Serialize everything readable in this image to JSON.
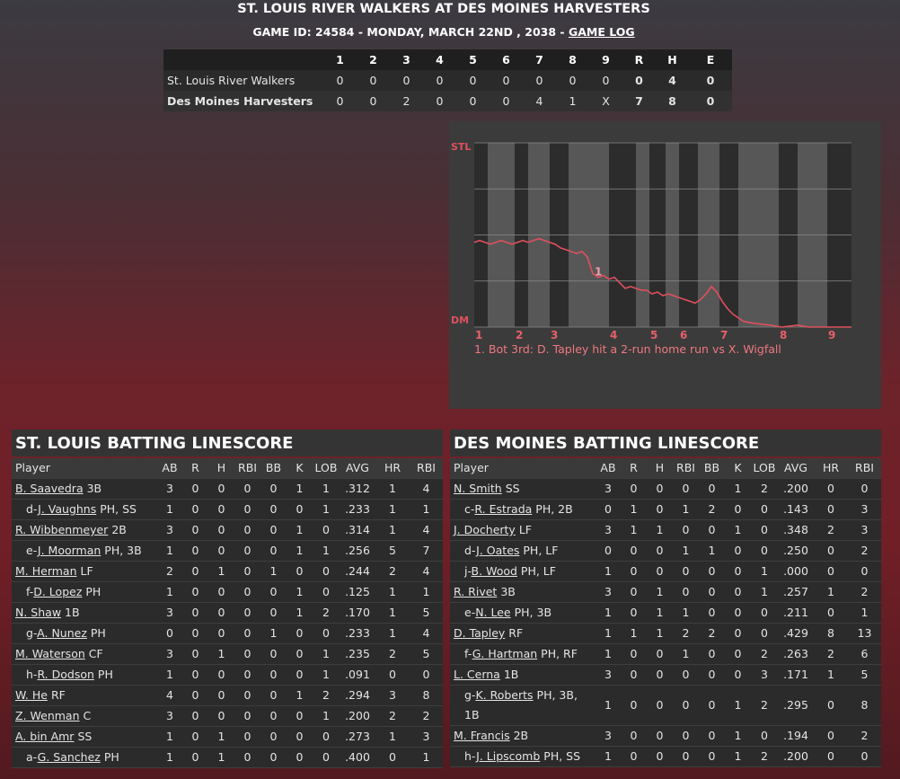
{
  "header": {
    "title": "ST. LOUIS RIVER WALKERS AT DES MOINES HARVESTERS",
    "subtitle": "GAME ID: 24584 - MONDAY, MARCH 22ND , 2038 - ",
    "link": "GAME LOG"
  },
  "linescore": {
    "columns": [
      "1",
      "2",
      "3",
      "4",
      "5",
      "6",
      "7",
      "8",
      "9",
      "R",
      "H",
      "E"
    ],
    "rows": [
      [
        "St. Louis River Walkers",
        "0",
        "0",
        "0",
        "0",
        "0",
        "0",
        "0",
        "0",
        "0",
        "0",
        "4",
        "0"
      ],
      [
        "Des Moines Harvesters",
        "0",
        "0",
        "2",
        "0",
        "0",
        "0",
        "4",
        "1",
        "X",
        "7",
        "8",
        "0"
      ]
    ]
  },
  "win_probability": {
    "type": "line",
    "top_label": "STL",
    "bottom_label": "DM",
    "color": "#e0505e",
    "xlim": [
      0,
      70
    ],
    "ylim": [
      0,
      100
    ],
    "yticks": [
      0,
      25,
      50,
      75,
      100
    ],
    "grid": true,
    "half_inning_bounds": [
      0,
      2.5,
      7.5,
      10,
      14,
      17.5,
      25,
      30,
      32.5,
      35.5,
      38,
      41.5,
      45.5,
      49,
      56.5,
      60,
      65.5,
      70
    ],
    "inning_labels": [
      1,
      2,
      3,
      4,
      5,
      6,
      7,
      8,
      9
    ],
    "x": [
      0,
      1,
      2,
      3,
      4,
      5,
      6,
      7,
      8,
      9,
      10,
      11,
      12,
      13,
      14,
      15,
      16,
      17,
      18,
      19,
      20,
      21,
      22,
      23,
      24,
      25,
      26,
      27,
      28,
      29,
      30,
      31,
      32,
      33,
      34,
      35,
      36,
      37,
      38,
      39,
      40,
      41,
      42,
      43,
      44,
      45,
      46,
      47,
      48,
      49,
      50,
      52,
      55,
      57,
      60,
      62,
      66,
      70
    ],
    "values": [
      46,
      47,
      46,
      45,
      46,
      47,
      46,
      45,
      46,
      47,
      46,
      47,
      48,
      47,
      46,
      45,
      43,
      42,
      41,
      40,
      41,
      38,
      29,
      27,
      28,
      26,
      27,
      24,
      21,
      22,
      21,
      20,
      20,
      18,
      19,
      17,
      18,
      17,
      16,
      15,
      14,
      13,
      15,
      18,
      22,
      19,
      14,
      10,
      7,
      5,
      3,
      2,
      1,
      0,
      1,
      0,
      0,
      0
    ],
    "annotations": [
      {
        "x": 23,
        "label": "1",
        "text": "1. Bot 3rd: D. Tapley hit a 2-run home run vs X. Wigfall"
      }
    ]
  },
  "batting": [
    {
      "title": "ST. LOUIS BATTING LINESCORE",
      "columns": [
        "Player",
        "AB",
        "R",
        "H",
        "RBI",
        "BB",
        "K",
        "LOB",
        "AVG",
        "HR",
        "RBI"
      ],
      "rows": [
        {
          "name": "B. Saavedra",
          "pos": "3B",
          "stats": [
            "3",
            "0",
            "0",
            "0",
            "0",
            "1",
            "1",
            ".312",
            "1",
            "4"
          ]
        },
        {
          "prefix": "d-",
          "name": "J. Vaughns",
          "pos": "PH, SS",
          "stats": [
            "1",
            "0",
            "0",
            "0",
            "0",
            "0",
            "1",
            ".233",
            "1",
            "1"
          ]
        },
        {
          "name": "R. Wibbenmeyer",
          "pos": "2B",
          "stats": [
            "3",
            "0",
            "0",
            "0",
            "0",
            "1",
            "0",
            ".314",
            "1",
            "4"
          ]
        },
        {
          "prefix": "e-",
          "name": "J. Moorman",
          "pos": "PH, 3B",
          "stats": [
            "1",
            "0",
            "0",
            "0",
            "0",
            "1",
            "1",
            ".256",
            "5",
            "7"
          ]
        },
        {
          "name": "M. Herman",
          "pos": "LF",
          "stats": [
            "2",
            "0",
            "1",
            "0",
            "1",
            "0",
            "0",
            ".244",
            "2",
            "4"
          ]
        },
        {
          "prefix": "f-",
          "name": "D. Lopez",
          "pos": "PH",
          "stats": [
            "1",
            "0",
            "0",
            "0",
            "0",
            "1",
            "0",
            ".125",
            "1",
            "1"
          ]
        },
        {
          "name": "N. Shaw",
          "pos": "1B",
          "stats": [
            "3",
            "0",
            "0",
            "0",
            "0",
            "1",
            "2",
            ".170",
            "1",
            "5"
          ]
        },
        {
          "prefix": "g-",
          "name": "A. Nunez",
          "pos": "PH",
          "stats": [
            "0",
            "0",
            "0",
            "0",
            "1",
            "0",
            "0",
            ".233",
            "1",
            "4"
          ]
        },
        {
          "name": "M. Waterson",
          "pos": "CF",
          "stats": [
            "3",
            "0",
            "1",
            "0",
            "0",
            "0",
            "1",
            ".235",
            "2",
            "5"
          ]
        },
        {
          "prefix": "h-",
          "name": "R. Dodson",
          "pos": "PH",
          "stats": [
            "1",
            "0",
            "0",
            "0",
            "0",
            "0",
            "1",
            ".091",
            "0",
            "0"
          ]
        },
        {
          "name": "W. He",
          "pos": "RF",
          "stats": [
            "4",
            "0",
            "0",
            "0",
            "0",
            "1",
            "2",
            ".294",
            "3",
            "8"
          ]
        },
        {
          "name": "Z. Wenman",
          "pos": "C",
          "stats": [
            "3",
            "0",
            "0",
            "0",
            "0",
            "0",
            "1",
            ".200",
            "2",
            "2"
          ]
        },
        {
          "name": "A. bin Amr",
          "pos": "SS",
          "stats": [
            "1",
            "0",
            "1",
            "0",
            "0",
            "0",
            "0",
            ".273",
            "1",
            "3"
          ]
        },
        {
          "prefix": "a-",
          "name": "G. Sanchez",
          "pos": "PH",
          "stats": [
            "1",
            "0",
            "1",
            "0",
            "0",
            "0",
            "0",
            ".400",
            "0",
            "1"
          ]
        }
      ]
    },
    {
      "title": "DES MOINES BATTING LINESCORE",
      "columns": [
        "Player",
        "AB",
        "R",
        "H",
        "RBI",
        "BB",
        "K",
        "LOB",
        "AVG",
        "HR",
        "RBI"
      ],
      "rows": [
        {
          "name": "N. Smith",
          "pos": "SS",
          "stats": [
            "3",
            "0",
            "0",
            "0",
            "0",
            "1",
            "2",
            ".200",
            "0",
            "0"
          ]
        },
        {
          "prefix": "c-",
          "name": "R. Estrada",
          "pos": "PH, 2B",
          "stats": [
            "0",
            "1",
            "0",
            "1",
            "2",
            "0",
            "0",
            ".143",
            "0",
            "3"
          ]
        },
        {
          "name": "J. Docherty",
          "pos": "LF",
          "stats": [
            "3",
            "1",
            "1",
            "0",
            "0",
            "1",
            "0",
            ".348",
            "2",
            "3"
          ]
        },
        {
          "prefix": "d-",
          "name": "J. Oates",
          "pos": "PH, LF",
          "stats": [
            "0",
            "0",
            "0",
            "1",
            "1",
            "0",
            "0",
            ".250",
            "0",
            "2"
          ]
        },
        {
          "prefix": "j-",
          "name": "B. Wood",
          "pos": "PH, LF",
          "stats": [
            "1",
            "0",
            "0",
            "0",
            "0",
            "0",
            "1",
            ".000",
            "0",
            "0"
          ]
        },
        {
          "name": "R. Rivet",
          "pos": "3B",
          "stats": [
            "3",
            "0",
            "1",
            "0",
            "0",
            "0",
            "1",
            ".257",
            "1",
            "2"
          ]
        },
        {
          "prefix": "e-",
          "name": "N. Lee",
          "pos": "PH, 3B",
          "stats": [
            "1",
            "0",
            "1",
            "1",
            "0",
            "0",
            "0",
            ".211",
            "0",
            "1"
          ]
        },
        {
          "name": "D. Tapley",
          "pos": "RF",
          "stats": [
            "1",
            "1",
            "1",
            "2",
            "2",
            "0",
            "0",
            ".429",
            "8",
            "13"
          ]
        },
        {
          "prefix": "f-",
          "name": "G. Hartman",
          "pos": "PH, RF",
          "stats": [
            "1",
            "0",
            "0",
            "1",
            "0",
            "0",
            "2",
            ".263",
            "2",
            "6"
          ]
        },
        {
          "name": "L. Cerna",
          "pos": "1B",
          "stats": [
            "3",
            "0",
            "0",
            "0",
            "0",
            "0",
            "3",
            ".171",
            "1",
            "5"
          ]
        },
        {
          "prefix": "g-",
          "name": "K. Roberts",
          "pos": "PH, 3B, 1B",
          "stats": [
            "1",
            "0",
            "0",
            "0",
            "0",
            "1",
            "2",
            ".295",
            "0",
            "8"
          ]
        },
        {
          "name": "M. Francis",
          "pos": "2B",
          "stats": [
            "3",
            "0",
            "0",
            "0",
            "0",
            "1",
            "0",
            ".194",
            "0",
            "2"
          ]
        },
        {
          "prefix": "h-",
          "name": "J. Lipscomb",
          "pos": "PH, SS",
          "stats": [
            "1",
            "0",
            "0",
            "0",
            "0",
            "1",
            "2",
            ".200",
            "0",
            "0"
          ]
        }
      ]
    }
  ]
}
